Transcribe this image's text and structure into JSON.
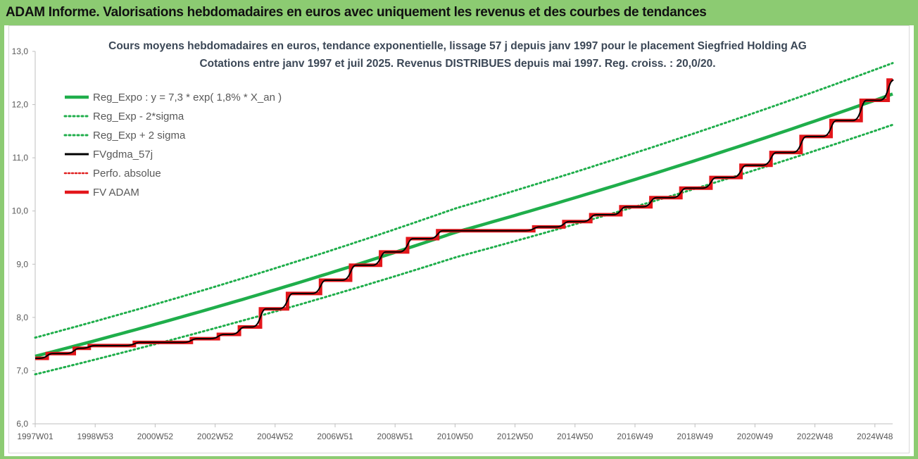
{
  "header": {
    "title": "ADAM Informe. Valorisations hebdomadaires en euros avec uniquement les revenus et des courbes de tendances"
  },
  "colors": {
    "header_bg": "#8ccb72",
    "reg_expo": "#1fae4b",
    "sigma_bands": "#1fae4b",
    "fvgdma": "#000000",
    "perfo": "#e02020",
    "fvadam": "#e3161b"
  },
  "chart_data": {
    "type": "line",
    "title": "Cours moyens hebdomadaires en euros, tendance exponentielle, lissage 57 j depuis janv 1997  pour le placement Siegfried  Holding AG",
    "subtitle": "Cotations entre janv 1997 et juil 2025. Revenus DISTRIBUES depuis mai 1997. Reg.  croiss. : 20,0/20.",
    "x_tick_labels": [
      "1997W01",
      "1998W53",
      "2000W52",
      "2002W52",
      "2004W52",
      "2006W51",
      "2008W51",
      "2010W50",
      "2012W50",
      "2014W50",
      "2016W49",
      "2018W49",
      "2020W49",
      "2022W48",
      "2024W48"
    ],
    "x_range_years": [
      1997.0,
      2025.55
    ],
    "y_tick_labels": [
      "6,0",
      "7,0",
      "8,0",
      "9,0",
      "10,0",
      "11,0",
      "12,0",
      "13,0"
    ],
    "ylim": [
      6.0,
      13.0
    ],
    "grid": false,
    "legend_position": "top-left",
    "legend": [
      {
        "key": "reg_expo",
        "label": "Reg_Expo : y = 7,3  * exp( 1,8% *  X_an )"
      },
      {
        "key": "reg_minus",
        "label": "Reg_Exp - 2*sigma"
      },
      {
        "key": "reg_plus",
        "label": "Reg_Exp + 2 sigma"
      },
      {
        "key": "fvgdma",
        "label": "FVgdma_57j"
      },
      {
        "key": "perfo",
        "label": "Perfo. absolue"
      },
      {
        "key": "fvadam",
        "label": "FV ADAM"
      }
    ],
    "series": [
      {
        "name": "Reg_Expo : y = 7,3  * exp( 1,8% *  X_an )",
        "type": "exponential",
        "a": 7.3,
        "rate": 0.018,
        "points": [
          [
            1997.0,
            7.27
          ],
          [
            2011.0,
            9.6
          ],
          [
            2025.55,
            12.2
          ]
        ]
      },
      {
        "name": "Reg_Exp - 2*sigma",
        "points": [
          [
            1997.0,
            6.93
          ],
          [
            2011.0,
            9.13
          ],
          [
            2025.55,
            11.62
          ]
        ]
      },
      {
        "name": "Reg_Exp + 2 sigma",
        "points": [
          [
            1997.0,
            7.62
          ],
          [
            2011.0,
            10.05
          ],
          [
            2025.55,
            12.78
          ]
        ]
      },
      {
        "name": "FV ADAM",
        "steps": [
          [
            1997.0,
            7.23
          ],
          [
            1997.4,
            7.32
          ],
          [
            1998.3,
            7.42
          ],
          [
            1998.8,
            7.47
          ],
          [
            2000.3,
            7.53
          ],
          [
            2002.2,
            7.6
          ],
          [
            2003.1,
            7.68
          ],
          [
            2003.8,
            7.82
          ],
          [
            2004.5,
            8.16
          ],
          [
            2005.4,
            8.45
          ],
          [
            2006.5,
            8.7
          ],
          [
            2007.5,
            8.98
          ],
          [
            2008.5,
            9.23
          ],
          [
            2009.4,
            9.48
          ],
          [
            2010.4,
            9.63
          ],
          [
            2013.6,
            9.7
          ],
          [
            2014.6,
            9.8
          ],
          [
            2015.5,
            9.93
          ],
          [
            2016.5,
            10.08
          ],
          [
            2017.5,
            10.25
          ],
          [
            2018.5,
            10.43
          ],
          [
            2019.5,
            10.63
          ],
          [
            2020.5,
            10.86
          ],
          [
            2021.5,
            11.1
          ],
          [
            2022.5,
            11.4
          ],
          [
            2023.5,
            11.7
          ],
          [
            2024.5,
            12.08
          ],
          [
            2025.4,
            12.46
          ]
        ],
        "end_x": 2025.55
      },
      {
        "name": "FVgdma_57j",
        "description_of_values": "smoothed version of FV ADAM steps"
      },
      {
        "name": "Perfo. absolue",
        "visible": false
      }
    ]
  }
}
